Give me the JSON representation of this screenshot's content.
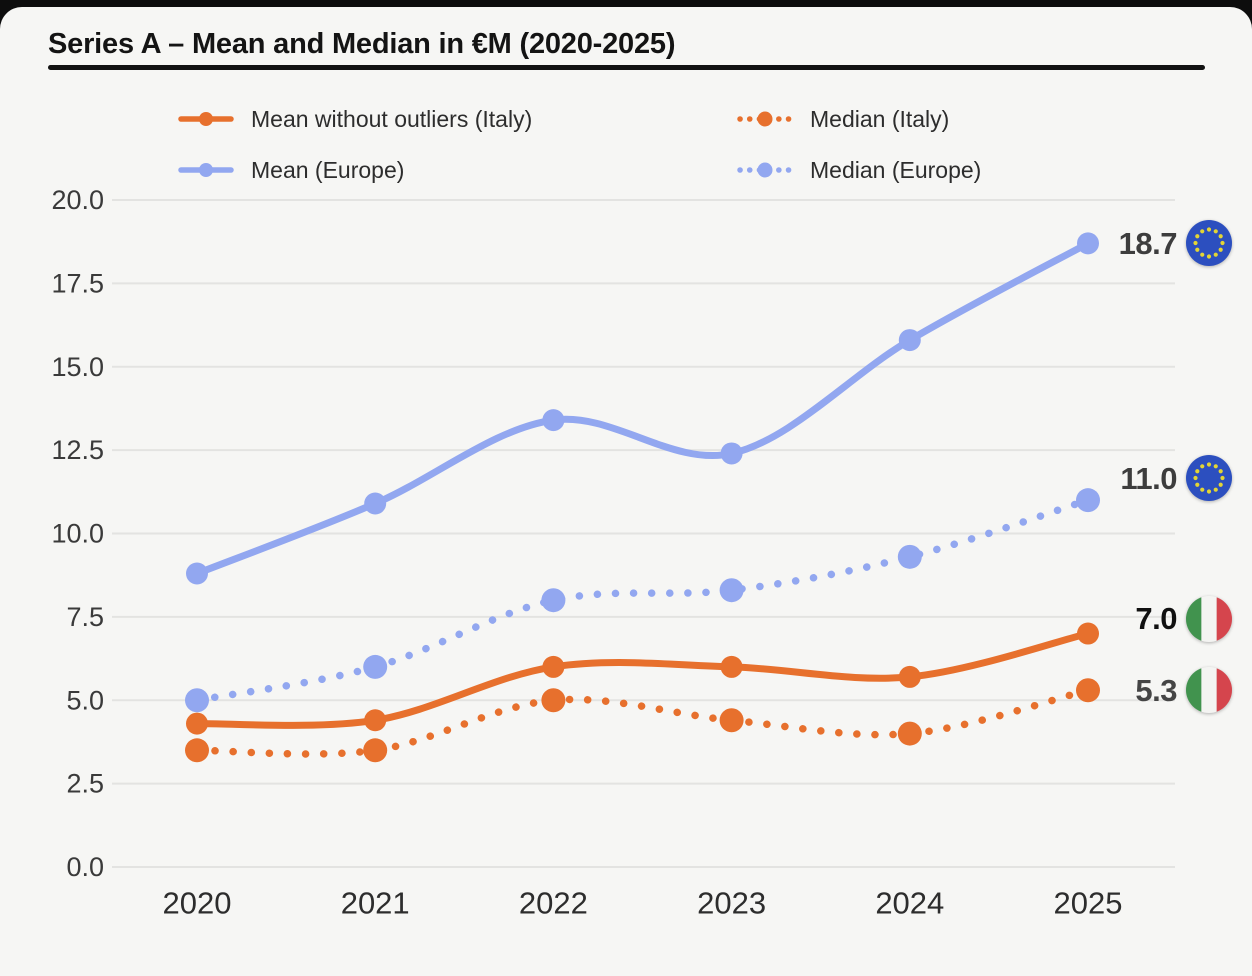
{
  "title": "Series A – Mean and Median in €M (2020-2025)",
  "palette": {
    "background": "#f6f6f4",
    "top_edge": "#0d0d0d",
    "grid": "#e3e3e1",
    "title_rule": "#121212",
    "orange": "#E7702D",
    "blue": "#92A7F0"
  },
  "chart_data": {
    "type": "line",
    "title": "Series A – Mean and Median in €M (2020-2025)",
    "x": [
      "2020",
      "2021",
      "2022",
      "2023",
      "2024",
      "2025"
    ],
    "ylim": [
      0,
      20
    ],
    "yticks": [
      "20.0",
      "17.5",
      "15.0",
      "12.5",
      "10.0",
      "7.5",
      "5.0",
      "2.5",
      "0.0"
    ],
    "grid": true,
    "legend_position": "top",
    "series": [
      {
        "id": "mean-italy",
        "name": "Mean without outliers (Italy)",
        "style": "solid",
        "color": "#E7702D",
        "values": [
          4.3,
          4.4,
          6.0,
          6.0,
          5.7,
          7.0
        ],
        "end_label": "7.0",
        "end_label_color": "#111111",
        "flag": "italy",
        "legend": {
          "col": 1,
          "row": 1
        }
      },
      {
        "id": "median-italy",
        "name": "Median (Italy)",
        "style": "dotted",
        "color": "#E7702D",
        "values": [
          3.5,
          3.5,
          5.0,
          4.4,
          4.0,
          5.3
        ],
        "end_label": "5.3",
        "end_label_color": "#454545",
        "flag": "italy",
        "legend": {
          "col": 2,
          "row": 1
        }
      },
      {
        "id": "mean-europe",
        "name": "Mean (Europe)",
        "style": "solid",
        "color": "#92A7F0",
        "values": [
          8.8,
          10.9,
          13.4,
          12.4,
          15.8,
          18.7
        ],
        "end_label": "18.7",
        "end_label_color": "#3d3d3d",
        "flag": "eu",
        "legend": {
          "col": 1,
          "row": 2
        }
      },
      {
        "id": "median-europe",
        "name": "Median (Europe)",
        "style": "dotted",
        "color": "#92A7F0",
        "values": [
          5.0,
          6.0,
          8.0,
          8.3,
          9.3,
          11.0
        ],
        "end_label": "11.0",
        "end_label_color": "#3d3d3d",
        "flag": "eu",
        "legend": {
          "col": 2,
          "row": 2
        }
      }
    ],
    "flag_colors": {
      "eu_blue": "#2c4fbf",
      "eu_star": "#e3d535",
      "italy_green": "#41934e",
      "italy_white": "#f4f4f2",
      "italy_red": "#d5454d"
    }
  }
}
